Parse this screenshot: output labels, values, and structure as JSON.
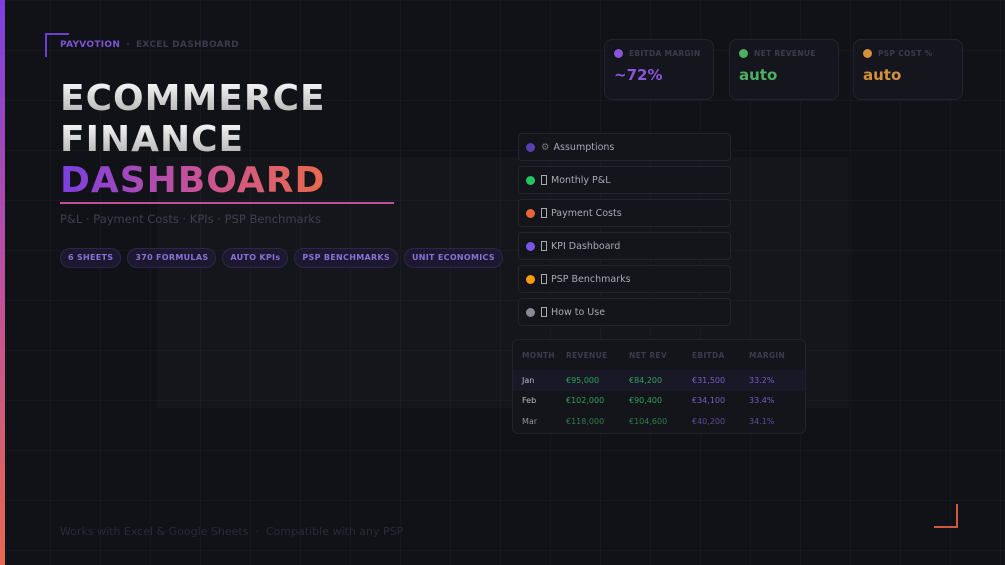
{
  "brand": {
    "name": "PAYVOTION",
    "separator": "·",
    "section": "EXCEL DASHBOARD"
  },
  "title": {
    "line1": "ECOMMERCE",
    "line2": "FINANCE",
    "line3": "DASHBOARD"
  },
  "subtitle": "P&L · Payment Costs · KPIs · PSP Benchmarks",
  "pills": [
    "6 SHEETS",
    "370 FORMULAS",
    "AUTO KPIs",
    "PSP BENCHMARKS",
    "UNIT ECONOMICS"
  ],
  "kpis": [
    {
      "label": "EBITDA MARGIN",
      "value": "~72%",
      "color": "#8a55d8"
    },
    {
      "label": "NET REVENUE",
      "value": "auto",
      "color": "#4caf62"
    },
    {
      "label": "PSP COST %",
      "value": "auto",
      "color": "#d4903a"
    }
  ],
  "sheets": [
    {
      "label": "Assumptions",
      "icon": "gear-icon",
      "color": "#5a3fb0"
    },
    {
      "label": "Monthly P&L",
      "icon": "emoji-icon",
      "color": "#22c55e"
    },
    {
      "label": "Payment Costs",
      "icon": "emoji-icon",
      "color": "#e8643a"
    },
    {
      "label": "KPI Dashboard",
      "icon": "emoji-icon",
      "color": "#7b55e6"
    },
    {
      "label": "PSP Benchmarks",
      "icon": "emoji-icon",
      "color": "#f59e0b"
    },
    {
      "label": "How to Use",
      "icon": "emoji-icon",
      "color": "#8a8a96"
    }
  ],
  "table": {
    "headers": [
      "MONTH",
      "REVENUE",
      "NET REV",
      "EBITDA",
      "MARGIN"
    ],
    "rows": [
      [
        "Jan",
        "€95,000",
        "€84,200",
        "€31,500",
        "33.2%"
      ],
      [
        "Feb",
        "€102,000",
        "€90,400",
        "€34,100",
        "33.4%"
      ],
      [
        "Mar",
        "€118,000",
        "€104,600",
        "€40,200",
        "34.1%"
      ]
    ]
  },
  "footer": {
    "left": "Works with Excel & Google Sheets",
    "sep": "·",
    "right": "Compatible with any PSP"
  }
}
